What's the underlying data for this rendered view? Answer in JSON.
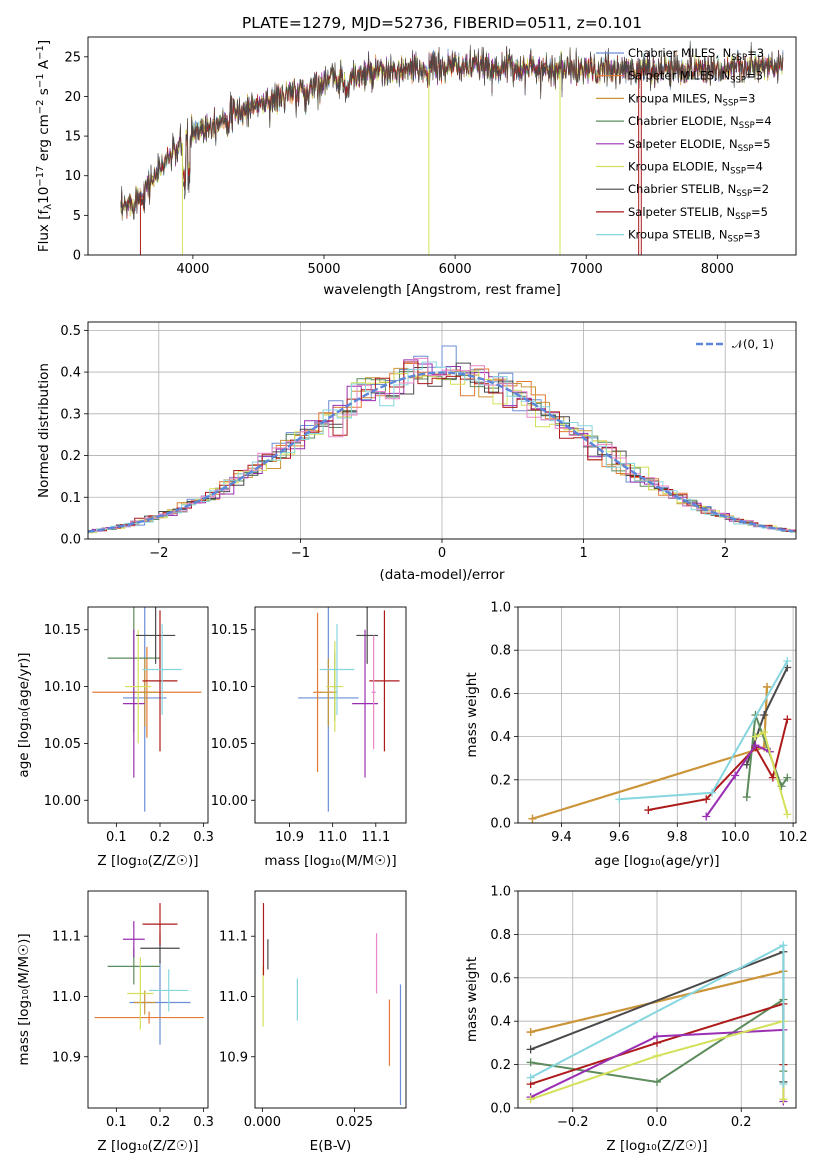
{
  "colors": {
    "Chabrier MILES": "#6a8fd6",
    "Salpeter MILES": "#e47c34",
    "Kroupa MILES": "#c9963a",
    "Chabrier ELODIE": "#5c8b5c",
    "Salpeter ELODIE": "#9a2fb3",
    "Kroupa ELODIE": "#d4e05a",
    "Chabrier STELIB": "#4a4a4a",
    "Salpeter STELIB": "#ad1a1a",
    "Kroupa STELIB": "#86d6e0",
    "Salpeter STELIB (alt)": "#e986c6",
    "gauss": "#5b86d9"
  },
  "chart_data": [
    {
      "id": "spectrum",
      "type": "line",
      "title": "PLATE=1279, MJD=52736, FIBERID=0511, z=0.101",
      "xlabel": "wavelength [Angstrom, rest frame]",
      "ylabel_parts": [
        "Flux [f",
        "λ",
        "10",
        "−17",
        " erg cm",
        "−2",
        " s",
        "−1",
        " A",
        "−1",
        "]"
      ],
      "xlim": [
        3200,
        8600
      ],
      "ylim": [
        0,
        27.5
      ],
      "xticks": [
        4000,
        5000,
        6000,
        7000,
        8000
      ],
      "yticks": [
        0,
        5,
        10,
        15,
        20,
        25
      ],
      "continuum_x": [
        3450,
        3600,
        3800,
        4000,
        4200,
        4500,
        4800,
        5000,
        5200,
        5500,
        5800,
        6000,
        6300,
        6600,
        6900,
        7200,
        7500,
        7800,
        8100,
        8500
      ],
      "continuum_y": [
        5.5,
        7.5,
        12.0,
        15.5,
        17.0,
        19.0,
        20.5,
        22.0,
        22.5,
        23.0,
        23.5,
        23.8,
        23.7,
        23.5,
        23.4,
        23.3,
        23.4,
        23.5,
        23.6,
        23.7
      ],
      "legend": [
        {
          "name": "Chabrier MILES",
          "n": "3"
        },
        {
          "name": "Salpeter MILES",
          "n": "3"
        },
        {
          "name": "Kroupa MILES",
          "n": "3"
        },
        {
          "name": "Chabrier ELODIE",
          "n": "4"
        },
        {
          "name": "Salpeter ELODIE",
          "n": "5"
        },
        {
          "name": "Kroupa ELODIE",
          "n": "4"
        },
        {
          "name": "Chabrier STELIB",
          "n": "2"
        },
        {
          "name": "Salpeter STELIB",
          "n": "5"
        },
        {
          "name": "Kroupa STELIB",
          "n": "3"
        }
      ],
      "legend_subscript": "SSP",
      "legend_placement": "right"
    },
    {
      "id": "residuals",
      "type": "histogram",
      "xlabel": "(data-model)/error",
      "ylabel": "Normed distribution",
      "xlim": [
        -2.5,
        2.5
      ],
      "ylim": [
        0,
        0.52
      ],
      "xticks": [
        -2,
        -1,
        0,
        1,
        2
      ],
      "yticks": [
        0.0,
        0.1,
        0.2,
        0.3,
        0.4,
        0.5
      ],
      "grid": true,
      "bin_width": 0.1,
      "legend": "𝒩(0, 1)",
      "legend_placement": "top-right"
    },
    {
      "id": "age_vs_Z",
      "type": "errorbar",
      "xlabel": "Z [log₁₀(Z/Z☉)]",
      "ylabel": "age  [log₁₀(age/yr)]",
      "xlim": [
        0.035,
        0.31
      ],
      "ylim": [
        9.98,
        10.17
      ],
      "xticks": [
        0.1,
        0.2,
        0.3
      ],
      "yticks": [
        10.0,
        10.05,
        10.1,
        10.15
      ],
      "points": [
        {
          "s": "Chabrier MILES",
          "x": 0.165,
          "xe": 0.05,
          "y": 10.09,
          "ye": 0.1
        },
        {
          "s": "Salpeter MILES",
          "x": 0.17,
          "xe": 0.125,
          "y": 10.095,
          "ye": 0.04
        },
        {
          "s": "Kroupa MILES",
          "x": 0.165,
          "xe": 0.03,
          "y": 10.095,
          "ye": 0.03
        },
        {
          "s": "Chabrier ELODIE",
          "x": 0.14,
          "xe": 0.06,
          "y": 10.125,
          "ye": 0.065
        },
        {
          "s": "Salpeter ELODIE",
          "x": 0.14,
          "xe": 0.025,
          "y": 10.085,
          "ye": 0.065
        },
        {
          "s": "Kroupa ELODIE",
          "x": 0.15,
          "xe": 0.03,
          "y": 10.1,
          "ye": 0.05
        },
        {
          "s": "Chabrier STELIB",
          "x": 0.19,
          "xe": 0.045,
          "y": 10.145,
          "ye": 0.025
        },
        {
          "s": "Salpeter STELIB",
          "x": 0.2,
          "xe": 0.04,
          "y": 10.105,
          "ye": 0.062
        },
        {
          "s": "Kroupa STELIB",
          "x": 0.205,
          "xe": 0.045,
          "y": 10.115,
          "ye": 0.04
        }
      ]
    },
    {
      "id": "age_vs_mass",
      "type": "errorbar",
      "xlabel": "mass [log₁₀(M/M☉)]",
      "xlim": [
        10.82,
        11.17
      ],
      "ylim": [
        9.98,
        10.17
      ],
      "xticks": [
        10.9,
        11.0,
        11.1
      ],
      "yticks": [
        10.0,
        10.05,
        10.1,
        10.15
      ],
      "points": [
        {
          "s": "Chabrier MILES",
          "x": 10.99,
          "xe": 0.07,
          "y": 10.09,
          "ye": 0.1
        },
        {
          "s": "Salpeter MILES",
          "x": 10.965,
          "xe": 0.01,
          "y": 10.095,
          "ye": 0.07
        },
        {
          "s": "Kroupa MILES",
          "x": 10.99,
          "xe": 0.02,
          "y": 10.095,
          "ye": 0.03
        },
        {
          "s": "Chabrier ELODIE",
          "x": 11.005,
          "xe": 0.005,
          "y": 10.1,
          "ye": 0.03
        },
        {
          "s": "Salpeter ELODIE",
          "x": 11.075,
          "xe": 0.03,
          "y": 10.085,
          "ye": 0.065
        },
        {
          "s": "Kroupa ELODIE",
          "x": 11.005,
          "xe": 0.02,
          "y": 10.1,
          "ye": 0.04
        },
        {
          "s": "Chabrier STELIB",
          "x": 11.08,
          "xe": 0.025,
          "y": 10.145,
          "ye": 0.025
        },
        {
          "s": "Salpeter STELIB",
          "x": 11.12,
          "xe": 0.035,
          "y": 10.105,
          "ye": 0.062
        },
        {
          "s": "Kroupa STELIB",
          "x": 11.01,
          "xe": 0.04,
          "y": 10.115,
          "ye": 0.04
        },
        {
          "s": "Salpeter STELIB (alt)",
          "x": 11.095,
          "xe": 0.005,
          "y": 10.095,
          "ye": 0.05
        }
      ]
    },
    {
      "id": "weight_vs_age",
      "type": "line",
      "xlabel": "age  [log₁₀(age/yr)]",
      "ylabel": "mass weight",
      "xlim": [
        9.25,
        10.21
      ],
      "ylim": [
        0,
        1.0
      ],
      "xticks": [
        9.4,
        9.6,
        9.8,
        10.0,
        10.2
      ],
      "yticks": [
        0.0,
        0.2,
        0.4,
        0.6,
        0.8,
        1.0
      ],
      "grid": true,
      "series": [
        {
          "s": "Salpeter MILES",
          "x": [
            9.3,
            10.1,
            10.11
          ],
          "y": [
            0.02,
            0.35,
            0.63
          ]
        },
        {
          "s": "Kroupa MILES",
          "x": [
            9.3,
            10.1,
            10.11
          ],
          "y": [
            0.02,
            0.35,
            0.63
          ]
        },
        {
          "s": "Chabrier STELIB",
          "x": [
            10.04,
            10.1,
            10.18
          ],
          "y": [
            0.27,
            0.5,
            0.72
          ]
        },
        {
          "s": "Chabrier ELODIE",
          "x": [
            10.04,
            10.07,
            10.16,
            10.18
          ],
          "y": [
            0.12,
            0.5,
            0.17,
            0.21
          ]
        },
        {
          "s": "Salpeter STELIB",
          "x": [
            9.7,
            9.9,
            10.07,
            10.13,
            10.18
          ],
          "y": [
            0.06,
            0.11,
            0.35,
            0.21,
            0.48
          ]
        },
        {
          "s": "Salpeter ELODIE",
          "x": [
            9.9,
            10.0,
            10.07,
            10.12
          ],
          "y": [
            0.03,
            0.22,
            0.36,
            0.33
          ]
        },
        {
          "s": "Kroupa ELODIE",
          "x": [
            10.07,
            10.1,
            10.18
          ],
          "y": [
            0.4,
            0.42,
            0.04
          ]
        },
        {
          "s": "Kroupa STELIB",
          "x": [
            9.6,
            9.92,
            10.18
          ],
          "y": [
            0.11,
            0.14,
            0.75
          ]
        }
      ]
    },
    {
      "id": "mass_vs_Z",
      "type": "errorbar",
      "xlabel": "Z [log₁₀(Z/Z☉)]",
      "ylabel": "mass [log₁₀(M/M☉)]",
      "xlim": [
        0.035,
        0.31
      ],
      "ylim": [
        10.815,
        11.175
      ],
      "xticks": [
        0.1,
        0.2,
        0.3
      ],
      "yticks": [
        10.9,
        11.0,
        11.1
      ],
      "points": [
        {
          "s": "Chabrier MILES",
          "x": 0.2,
          "xe": 0.07,
          "y": 10.99,
          "ye": 0.07
        },
        {
          "s": "Salpeter MILES",
          "x": 0.175,
          "xe": 0.125,
          "y": 10.965,
          "ye": 0.01
        },
        {
          "s": "Kroupa MILES",
          "x": 0.165,
          "xe": 0.025,
          "y": 10.99,
          "ye": 0.02
        },
        {
          "s": "Chabrier ELODIE",
          "x": 0.14,
          "xe": 0.06,
          "y": 11.05,
          "ye": 0.03
        },
        {
          "s": "Salpeter ELODIE",
          "x": 0.14,
          "xe": 0.025,
          "y": 11.095,
          "ye": 0.03
        },
        {
          "s": "Kroupa ELODIE",
          "x": 0.155,
          "xe": 0.03,
          "y": 11.005,
          "ye": 0.06
        },
        {
          "s": "Chabrier STELIB",
          "x": 0.2,
          "xe": 0.045,
          "y": 11.08,
          "ye": 0.025
        },
        {
          "s": "Salpeter STELIB",
          "x": 0.2,
          "xe": 0.04,
          "y": 11.12,
          "ye": 0.035
        },
        {
          "s": "Kroupa STELIB",
          "x": 0.22,
          "xe": 0.045,
          "y": 11.01,
          "ye": 0.035
        }
      ]
    },
    {
      "id": "mass_vs_ebv",
      "type": "errorbar",
      "xlabel": "E(B-V)",
      "xlim": [
        -0.002,
        0.039
      ],
      "ylim": [
        10.815,
        11.175
      ],
      "xticks": [
        0.0,
        0.025
      ],
      "yticks": [
        10.9,
        11.0,
        11.1
      ],
      "points": [
        {
          "s": "Chabrier MILES",
          "x": 0.0375,
          "y": 10.92,
          "ye": 0.1
        },
        {
          "s": "Salpeter MILES",
          "x": 0.0345,
          "y": 10.94,
          "ye": 0.055
        },
        {
          "s": "Kroupa ELODIE",
          "x": 0.0002,
          "y": 11.0,
          "ye": 0.05
        },
        {
          "s": "Salpeter STELIB",
          "x": 0.0003,
          "y": 11.095,
          "ye": 0.06
        },
        {
          "s": "Chabrier STELIB",
          "x": 0.0015,
          "y": 11.07,
          "ye": 0.025
        },
        {
          "s": "Kroupa STELIB",
          "x": 0.0095,
          "y": 10.995,
          "ye": 0.035
        },
        {
          "s": "Salpeter STELIB (alt)",
          "x": 0.031,
          "y": 11.055,
          "ye": 0.05
        }
      ]
    },
    {
      "id": "weight_vs_Z",
      "type": "line",
      "xlabel": "Z [log₁₀(Z/Z☉)]",
      "ylabel": "mass weight",
      "xlim": [
        -0.33,
        0.33
      ],
      "ylim": [
        0,
        1.0
      ],
      "xticks": [
        -0.2,
        0.0,
        0.2
      ],
      "yticks": [
        0.0,
        0.2,
        0.4,
        0.6,
        0.8,
        1.0
      ],
      "grid": true,
      "series": [
        {
          "s": "Salpeter MILES",
          "x": [
            -0.3,
            0.3
          ],
          "y": [
            0.35,
            0.63
          ]
        },
        {
          "s": "Kroupa MILES",
          "x": [
            -0.3,
            0.3
          ],
          "y": [
            0.35,
            0.63
          ]
        },
        {
          "s": "Chabrier STELIB",
          "x": [
            -0.3,
            0.3,
            0.3
          ],
          "y": [
            0.27,
            0.72,
            0.12
          ]
        },
        {
          "s": "Chabrier ELODIE",
          "x": [
            -0.3,
            0.0,
            0.3,
            0.3
          ],
          "y": [
            0.21,
            0.12,
            0.5,
            0.17
          ]
        },
        {
          "s": "Salpeter STELIB",
          "x": [
            -0.3,
            0.0,
            0.3,
            0.3
          ],
          "y": [
            0.11,
            0.3,
            0.48,
            0.2
          ]
        },
        {
          "s": "Salpeter ELODIE",
          "x": [
            -0.3,
            0.0,
            0.3,
            0.3
          ],
          "y": [
            0.05,
            0.33,
            0.36,
            0.03
          ]
        },
        {
          "s": "Kroupa ELODIE",
          "x": [
            -0.3,
            0.0,
            0.3,
            0.3
          ],
          "y": [
            0.04,
            0.24,
            0.4,
            0.04
          ]
        },
        {
          "s": "Kroupa STELIB",
          "x": [
            -0.3,
            0.3,
            0.3
          ],
          "y": [
            0.14,
            0.75,
            0.11
          ]
        }
      ]
    }
  ]
}
